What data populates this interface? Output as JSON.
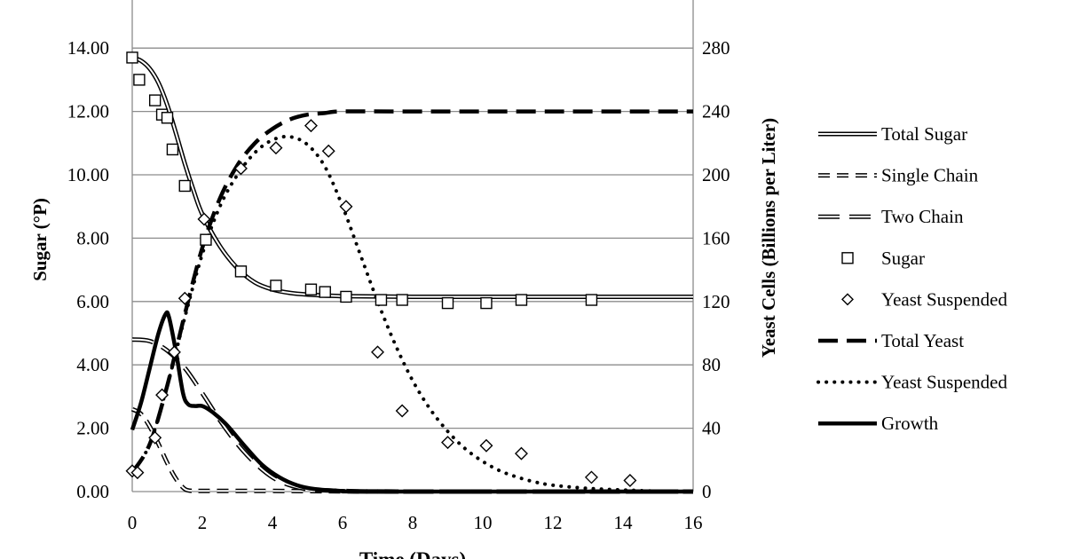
{
  "chart_data": {
    "type": "line",
    "title": "",
    "xlabel": "Time (Days)",
    "ylabel": "Sugar (°P)",
    "y2label": "Yeast Cells (Billions per Liter)",
    "xlim": [
      0,
      16
    ],
    "ylim": [
      0,
      14
    ],
    "y2lim": [
      0,
      280
    ],
    "x_ticks": [
      "0",
      "2",
      "4",
      "6",
      "8",
      "10",
      "12",
      "14",
      "16"
    ],
    "y_ticks": [
      "0.00",
      "2.00",
      "4.00",
      "6.00",
      "8.00",
      "10.00",
      "12.00",
      "14.00"
    ],
    "y2_ticks": [
      "0",
      "40",
      "80",
      "120",
      "160",
      "200",
      "240",
      "280"
    ],
    "grid": "horizontal",
    "legend_position": "right",
    "colors": {
      "ink": "#000000",
      "grid": "#8c8c8c",
      "background": "#ffffff"
    },
    "series": [
      {
        "name": "Total Sugar",
        "axis": "left",
        "style": "double-line",
        "kind": "line",
        "points": [
          [
            0,
            13.7
          ],
          [
            0.25,
            13.6
          ],
          [
            0.5,
            13.35
          ],
          [
            0.75,
            12.9
          ],
          [
            1,
            12.2
          ],
          [
            1.25,
            11.3
          ],
          [
            1.5,
            10.35
          ],
          [
            1.75,
            9.5
          ],
          [
            2,
            8.75
          ],
          [
            2.5,
            7.75
          ],
          [
            3,
            7.05
          ],
          [
            3.5,
            6.6
          ],
          [
            4,
            6.38
          ],
          [
            4.5,
            6.27
          ],
          [
            5,
            6.22
          ],
          [
            6,
            6.17
          ],
          [
            8,
            6.15
          ],
          [
            12,
            6.15
          ],
          [
            16,
            6.15
          ]
        ]
      },
      {
        "name": "Single Chain",
        "axis": "left",
        "style": "double-dash",
        "kind": "line",
        "points": [
          [
            0,
            2.6
          ],
          [
            0.25,
            2.45
          ],
          [
            0.5,
            2.05
          ],
          [
            0.75,
            1.5
          ],
          [
            1,
            0.9
          ],
          [
            1.25,
            0.4
          ],
          [
            1.5,
            0.08
          ],
          [
            1.75,
            0.02
          ],
          [
            2,
            0.02
          ],
          [
            4,
            0.02
          ],
          [
            8,
            0.0
          ],
          [
            16,
            0.0
          ]
        ]
      },
      {
        "name": "Two Chain",
        "axis": "left",
        "style": "double-long-dash",
        "kind": "line",
        "points": [
          [
            0,
            4.8
          ],
          [
            0.5,
            4.75
          ],
          [
            1,
            4.45
          ],
          [
            1.5,
            3.9
          ],
          [
            2,
            3.1
          ],
          [
            2.5,
            2.25
          ],
          [
            3,
            1.5
          ],
          [
            3.5,
            0.9
          ],
          [
            4,
            0.45
          ],
          [
            4.5,
            0.2
          ],
          [
            5,
            0.08
          ],
          [
            6,
            0.02
          ],
          [
            8,
            0.0
          ],
          [
            16,
            0.0
          ]
        ]
      },
      {
        "name": "Sugar",
        "axis": "left",
        "style": "square-marker",
        "kind": "scatter",
        "points": [
          [
            0,
            13.7
          ],
          [
            0.2,
            13.0
          ],
          [
            0.65,
            12.35
          ],
          [
            0.85,
            11.9
          ],
          [
            1.0,
            11.8
          ],
          [
            1.15,
            10.8
          ],
          [
            1.5,
            9.65
          ],
          [
            2.1,
            7.95
          ],
          [
            3.1,
            6.95
          ],
          [
            4.1,
            6.5
          ],
          [
            5.1,
            6.38
          ],
          [
            5.5,
            6.3
          ],
          [
            6.1,
            6.15
          ],
          [
            7.1,
            6.05
          ],
          [
            7.7,
            6.05
          ],
          [
            9.0,
            5.95
          ],
          [
            10.1,
            5.95
          ],
          [
            11.1,
            6.05
          ],
          [
            13.1,
            6.05
          ]
        ]
      },
      {
        "name": "Yeast Suspended",
        "axis": "right",
        "style": "diamond-marker",
        "kind": "scatter",
        "points": [
          [
            0.0,
            13
          ],
          [
            0.15,
            12
          ],
          [
            0.65,
            34
          ],
          [
            0.85,
            61
          ],
          [
            1.2,
            88
          ],
          [
            1.5,
            122
          ],
          [
            2.05,
            172
          ],
          [
            3.1,
            204
          ],
          [
            4.1,
            217
          ],
          [
            5.1,
            231
          ],
          [
            5.6,
            215
          ],
          [
            6.1,
            180
          ],
          [
            7.0,
            88
          ],
          [
            7.7,
            51
          ],
          [
            9.0,
            31
          ],
          [
            10.1,
            29
          ],
          [
            11.1,
            24
          ],
          [
            13.1,
            9
          ],
          [
            14.2,
            7
          ]
        ]
      },
      {
        "name": "Total Yeast",
        "axis": "right",
        "style": "thick-dash",
        "kind": "line",
        "points": [
          [
            0,
            12
          ],
          [
            0.5,
            30
          ],
          [
            1,
            67
          ],
          [
            1.5,
            112
          ],
          [
            2,
            154
          ],
          [
            2.5,
            185
          ],
          [
            3,
            206
          ],
          [
            3.5,
            220
          ],
          [
            4,
            229
          ],
          [
            4.5,
            235
          ],
          [
            5,
            238
          ],
          [
            5.5,
            239
          ],
          [
            6,
            240
          ],
          [
            8,
            240
          ],
          [
            12,
            240
          ],
          [
            16,
            240
          ]
        ]
      },
      {
        "name": "Yeast Suspended",
        "axis": "right",
        "style": "dotted",
        "kind": "line",
        "points": [
          [
            0,
            12
          ],
          [
            0.5,
            30
          ],
          [
            1,
            67
          ],
          [
            1.5,
            110
          ],
          [
            2,
            150
          ],
          [
            2.5,
            180
          ],
          [
            3,
            200
          ],
          [
            3.5,
            214
          ],
          [
            4,
            222
          ],
          [
            4.5,
            224
          ],
          [
            5,
            219
          ],
          [
            5.5,
            205
          ],
          [
            6,
            180
          ],
          [
            6.5,
            150
          ],
          [
            7,
            120
          ],
          [
            7.5,
            93
          ],
          [
            8,
            70
          ],
          [
            8.5,
            52
          ],
          [
            9,
            38
          ],
          [
            9.5,
            27
          ],
          [
            10,
            19
          ],
          [
            10.5,
            13
          ],
          [
            11,
            9
          ],
          [
            11.5,
            6
          ],
          [
            12,
            4
          ],
          [
            13,
            2
          ],
          [
            14,
            1
          ],
          [
            15,
            0.3
          ],
          [
            16,
            0
          ]
        ]
      },
      {
        "name": "Growth",
        "axis": "left",
        "style": "thick-solid",
        "kind": "line",
        "points": [
          [
            0,
            1.95
          ],
          [
            0.25,
            2.8
          ],
          [
            0.5,
            3.9
          ],
          [
            0.75,
            5.0
          ],
          [
            0.95,
            5.6
          ],
          [
            1.05,
            5.5
          ],
          [
            1.25,
            4.4
          ],
          [
            1.45,
            3.1
          ],
          [
            1.6,
            2.75
          ],
          [
            1.8,
            2.7
          ],
          [
            2.0,
            2.7
          ],
          [
            2.3,
            2.5
          ],
          [
            2.7,
            2.1
          ],
          [
            3.2,
            1.45
          ],
          [
            3.7,
            0.85
          ],
          [
            4.2,
            0.45
          ],
          [
            4.7,
            0.2
          ],
          [
            5.2,
            0.08
          ],
          [
            6,
            0.02
          ],
          [
            7,
            0.0
          ],
          [
            16,
            0.0
          ]
        ]
      }
    ]
  }
}
